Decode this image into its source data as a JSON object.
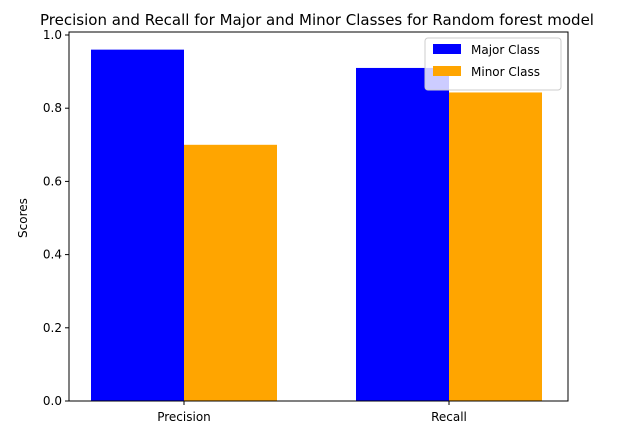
{
  "chart_data": {
    "type": "bar",
    "title": "Precision and Recall for Major and Minor Classes for Random forest model",
    "xlabel": "",
    "ylabel": "Scores",
    "categories": [
      "Precision",
      "Recall"
    ],
    "series": [
      {
        "name": "Major Class",
        "color": "#0000ff",
        "values": [
          0.96,
          0.91
        ]
      },
      {
        "name": "Minor Class",
        "color": "#ffa500",
        "values": [
          0.7,
          0.843
        ]
      }
    ],
    "ylim": [
      0,
      1.0
    ],
    "yticks": [
      "0.0",
      "0.2",
      "0.4",
      "0.6",
      "0.8",
      "1.0"
    ],
    "grid": false,
    "legend_position": "top-right"
  }
}
